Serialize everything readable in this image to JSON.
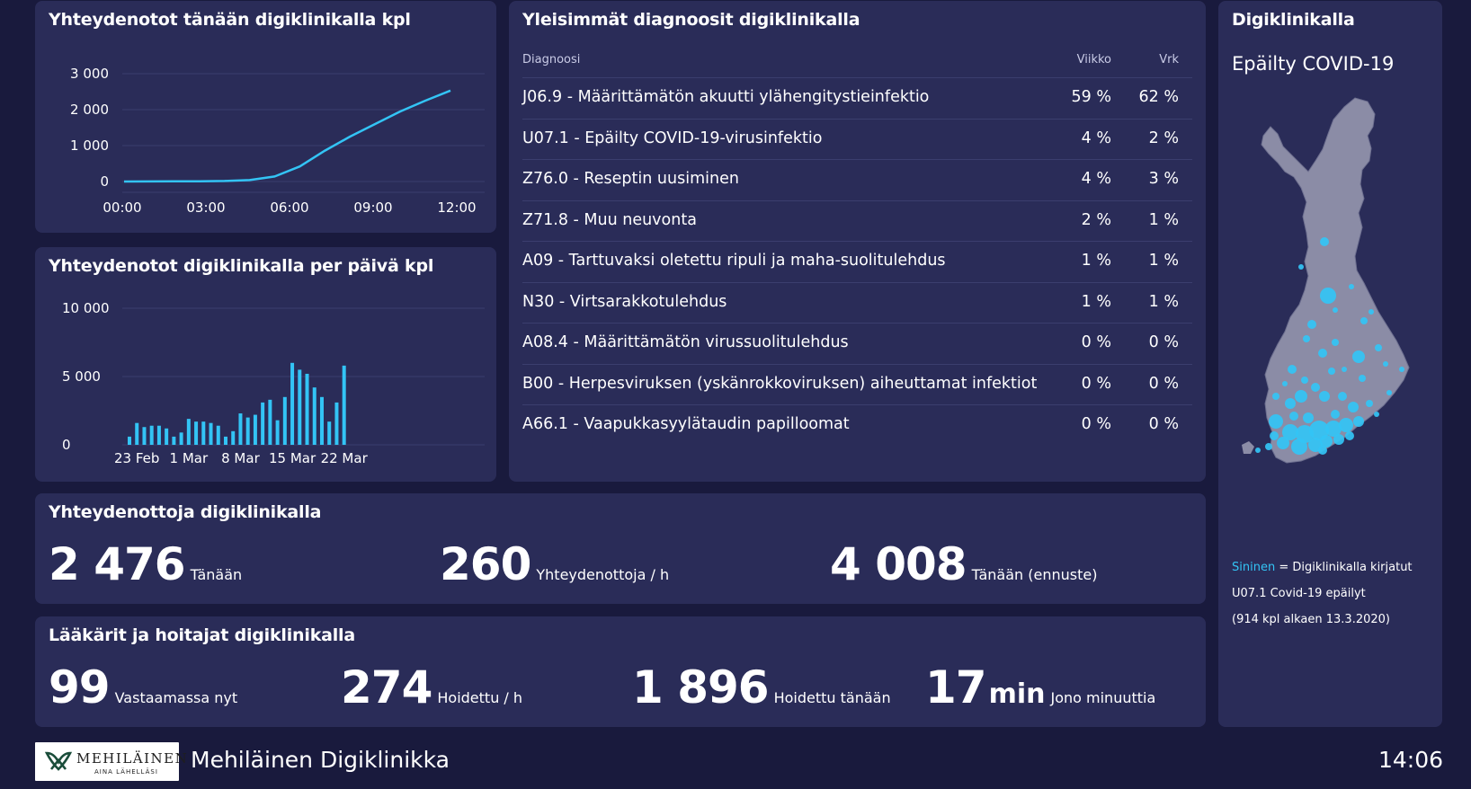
{
  "colors": {
    "background": "#191a3d",
    "panel": "#2a2c58",
    "accent": "#33c4f5",
    "grid": "#3b3e6e"
  },
  "today_panel": {
    "title": "Yhteydenotot tänään digiklinikalla kpl",
    "chart_data": {
      "type": "line",
      "x": [
        "00:00",
        "01:00",
        "02:00",
        "03:00",
        "04:00",
        "05:00",
        "06:00",
        "07:00",
        "08:00",
        "09:00",
        "10:00",
        "11:00",
        "12:00",
        "13:00"
      ],
      "values": [
        0,
        2,
        4,
        8,
        14,
        40,
        140,
        420,
        860,
        1250,
        1600,
        1950,
        2250,
        2530
      ],
      "ytick_labels": [
        "3 000",
        "2 000",
        "1 000",
        "0"
      ],
      "yticks": [
        3000,
        2000,
        1000,
        0
      ],
      "xtick_labels": [
        "00:00",
        "03:00",
        "06:00",
        "09:00",
        "12:00"
      ],
      "xticks": [
        0,
        3,
        6,
        9,
        12
      ],
      "ylim": [
        0,
        3000
      ],
      "xlim": [
        0,
        13
      ],
      "grid": true
    }
  },
  "daily_panel": {
    "title": "Yhteydenotot digiklinikalla per päivä kpl",
    "chart_data": {
      "type": "bar",
      "categories": [
        "22 Feb",
        "23 Feb",
        "24 Feb",
        "25 Feb",
        "26 Feb",
        "27 Feb",
        "28 Feb",
        "29 Feb",
        "1 Mar",
        "2 Mar",
        "3 Mar",
        "4 Mar",
        "5 Mar",
        "6 Mar",
        "7 Mar",
        "8 Mar",
        "9 Mar",
        "10 Mar",
        "11 Mar",
        "12 Mar",
        "13 Mar",
        "14 Mar",
        "15 Mar",
        "16 Mar",
        "17 Mar",
        "18 Mar",
        "19 Mar",
        "20 Mar",
        "21 Mar",
        "22 Mar",
        "23 Mar",
        "24 Mar"
      ],
      "values": [
        600,
        1600,
        1300,
        1400,
        1400,
        1200,
        600,
        900,
        1900,
        1700,
        1700,
        1600,
        1400,
        600,
        1000,
        2300,
        2000,
        2200,
        3100,
        3300,
        1800,
        3500,
        6000,
        5500,
        5200,
        4200,
        3500,
        1700,
        3100,
        5800,
        0,
        0
      ],
      "ytick_labels": [
        "10 000",
        "5 000",
        "0"
      ],
      "yticks": [
        10000,
        5000,
        0
      ],
      "xtick_labels": [
        "23 Feb",
        "1 Mar",
        "8 Mar",
        "15 Mar",
        "22 Mar"
      ],
      "xtick_index": [
        1,
        8,
        15,
        22,
        29
      ],
      "ylim": [
        0,
        10000
      ],
      "grid": true
    }
  },
  "diagnoses": {
    "title": "Yleisimmät diagnoosit digiklinikalla",
    "headers": {
      "name": "Diagnoosi",
      "week": "Viikko",
      "day": "Vrk"
    },
    "rows": [
      {
        "name": "J06.9 - Määrittämätön akuutti ylähengitystieinfektio",
        "week": "59 %",
        "day": "62 %"
      },
      {
        "name": "U07.1 - Epäilty COVID-19-virusinfektio",
        "week": "4 %",
        "day": "2 %"
      },
      {
        "name": "Z76.0 - Reseptin uusiminen",
        "week": "4 %",
        "day": "3 %"
      },
      {
        "name": "Z71.8 - Muu neuvonta",
        "week": "2 %",
        "day": "1 %"
      },
      {
        "name": "A09 - Tarttuvaksi oletettu ripuli ja maha-suolitulehdus",
        "week": "1 %",
        "day": "1 %"
      },
      {
        "name": "N30 - Virtsarakkotulehdus",
        "week": "1 %",
        "day": "1 %"
      },
      {
        "name": "A08.4 - Määrittämätön virussuolitulehdus",
        "week": "0 %",
        "day": "0 %"
      },
      {
        "name": "B00 - Herpesviruksen (yskänrokkoviruksen) aiheuttamat infektiot",
        "week": "0 %",
        "day": "0 %"
      },
      {
        "name": "A66.1 - Vaapukkasyylätaudin papilloomat",
        "week": "0 %",
        "day": "0 %"
      }
    ]
  },
  "map_panel": {
    "title": "Digiklinikalla",
    "subtitle": "Epäilty COVID-19",
    "legend_blue": "Sininen",
    "legend_rest": " = Digiklinikalla kirjatut",
    "legend_line2": "U07.1 Covid-19 epäilyt",
    "legend_line3": "(914 kpl alkaen 13.3.2020)"
  },
  "contacts": {
    "title": "Yhteydenottoja digiklinikalla",
    "today_value": "2 476",
    "today_label": "Tänään",
    "per_hour_value": "260",
    "per_hour_label": "Yhteydenottoja / h",
    "forecast_value": "4 008",
    "forecast_label": "Tänään (ennuste)"
  },
  "staff": {
    "title": "Lääkärit ja hoitajat digiklinikalla",
    "answering_value": "99",
    "answering_label": "Vastaamassa nyt",
    "handled_hour_value": "274",
    "handled_hour_label": "Hoidettu / h",
    "handled_today_value": "1 896",
    "handled_today_label": "Hoidettu tänään",
    "queue_value": "17",
    "queue_unit": "min",
    "queue_label": "Jono minuuttia"
  },
  "footer": {
    "logo_name": "MEHILÄINEN",
    "logo_tagline": "AINA LÄHELLÄSI",
    "app_title": "Mehiläinen Digiklinikka",
    "clock": "14:06"
  }
}
